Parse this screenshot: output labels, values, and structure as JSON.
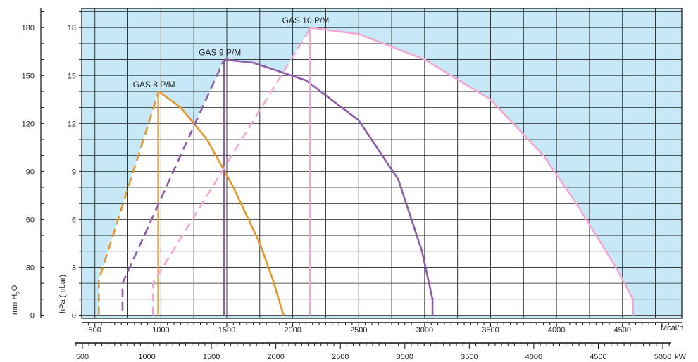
{
  "chart_data": {
    "type": "line",
    "title": "",
    "x_primary": {
      "label": "Mcal/h",
      "range": [
        400,
        4950
      ],
      "ticks": [
        500,
        1000,
        1500,
        2000,
        2500,
        3000,
        3500,
        4000,
        4500
      ],
      "tick_labels": [
        "500",
        "1000",
        "1500",
        "2000",
        "2500",
        "3000",
        "3500",
        "4000",
        "4500"
      ]
    },
    "x_secondary": {
      "label": "kW",
      "ticks": [
        500,
        1000,
        1500,
        2000,
        2500,
        3000,
        3500,
        4000,
        4500,
        5000
      ],
      "tick_labels": [
        "500",
        "1000",
        "1500",
        "2000",
        "2500",
        "3000",
        "3500",
        "4000",
        "4500",
        "5000"
      ]
    },
    "y_primary": {
      "label": "hPa (mbar)",
      "range": [
        -0.2,
        19.2
      ],
      "ticks": [
        0,
        3,
        6,
        9,
        12,
        15,
        18
      ],
      "tick_labels": [
        "0",
        "3",
        "6",
        "9",
        "12",
        "15",
        "18"
      ]
    },
    "y_secondary": {
      "label": "mm H2O",
      "ticks": [
        0,
        30,
        60,
        90,
        120,
        150,
        180
      ],
      "tick_labels": [
        "0",
        "30",
        "60",
        "90",
        "120",
        "150",
        "180"
      ]
    },
    "grid": true,
    "background_color": "#c6e8f7",
    "series": [
      {
        "name": "GAS 8 P/M",
        "color": "#e8962a",
        "dashed": [
          [
            530,
            0
          ],
          [
            530,
            2.2
          ],
          [
            980,
            13.9
          ]
        ],
        "vertical_x": 980,
        "curve": [
          [
            985,
            14.0
          ],
          [
            1150,
            13.0
          ],
          [
            1350,
            11.0
          ],
          [
            1550,
            8.0
          ],
          [
            1750,
            4.5
          ],
          [
            1850,
            2.2
          ],
          [
            1930,
            0
          ]
        ]
      },
      {
        "name": "GAS 9 P/M",
        "color": "#8e5ba8",
        "dashed": [
          [
            710,
            0.3
          ],
          [
            710,
            2.0
          ],
          [
            1480,
            16.0
          ]
        ],
        "vertical_x": 1480,
        "curve": [
          [
            1480,
            16.0
          ],
          [
            1700,
            15.8
          ],
          [
            2100,
            14.7
          ],
          [
            2500,
            12.2
          ],
          [
            2800,
            8.5
          ],
          [
            2980,
            4.0
          ],
          [
            3060,
            1.0
          ],
          [
            3060,
            0
          ]
        ]
      },
      {
        "name": "GAS 10 P/M",
        "color": "#f2a8d2",
        "dashed": [
          [
            940,
            0
          ],
          [
            940,
            2.0
          ],
          [
            2130,
            17.9
          ]
        ],
        "vertical_x": 2130,
        "curve": [
          [
            2130,
            18.0
          ],
          [
            2500,
            17.6
          ],
          [
            3000,
            16.0
          ],
          [
            3500,
            13.5
          ],
          [
            3900,
            10.0
          ],
          [
            4150,
            7.0
          ],
          [
            4450,
            3.0
          ],
          [
            4580,
            1.0
          ],
          [
            4580,
            0
          ]
        ]
      }
    ]
  }
}
